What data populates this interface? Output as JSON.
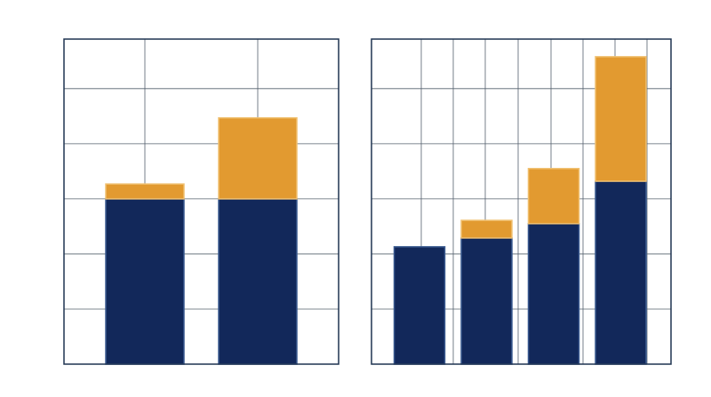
{
  "chart_data": [
    {
      "type": "stacked-bar",
      "categories": [
        null,
        null
      ],
      "series": [
        {
          "color": "#12285a",
          "values": [
            3.0,
            3.0
          ]
        },
        {
          "color": "#e29a30",
          "values": [
            0.27,
            1.47
          ]
        }
      ],
      "ylim": [
        0,
        5.9
      ],
      "yticks": [
        1,
        2,
        3,
        4,
        5
      ],
      "grid": true
    },
    {
      "type": "stacked-bar",
      "categories": [
        null,
        null,
        null,
        null
      ],
      "series": [
        {
          "color": "#12285a",
          "values": [
            2.13,
            2.29,
            2.55,
            3.32
          ]
        },
        {
          "color": "#e29a30",
          "values": [
            0,
            0.32,
            1.0,
            2.26
          ]
        }
      ],
      "ylim": [
        0,
        5.9
      ],
      "yticks": [
        1,
        2,
        3,
        4,
        5
      ],
      "grid": true
    }
  ]
}
